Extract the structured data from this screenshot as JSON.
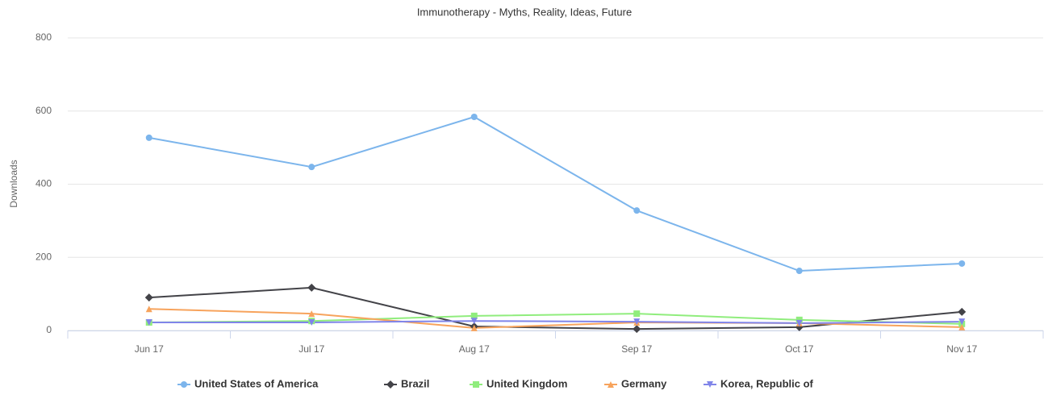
{
  "chart_data": {
    "type": "line",
    "title": "Immunotherapy - Myths, Reality, Ideas, Future",
    "y_label": "Downloads",
    "categories": [
      "Jun 17",
      "Jul 17",
      "Aug 17",
      "Sep 17",
      "Oct 17",
      "Nov 17"
    ],
    "series": [
      {
        "name": "United States of America",
        "color": "#7cb5ec",
        "marker": "circle",
        "values": [
          527,
          447,
          584,
          328,
          163,
          183
        ]
      },
      {
        "name": "Brazil",
        "color": "#434348",
        "marker": "diamond",
        "values": [
          90,
          117,
          11,
          4,
          9,
          51
        ]
      },
      {
        "name": "United Kingdom",
        "color": "#90ed7d",
        "marker": "square",
        "values": [
          22,
          26,
          40,
          46,
          29,
          18
        ]
      },
      {
        "name": "Germany",
        "color": "#f7a35c",
        "marker": "triangle",
        "values": [
          59,
          46,
          7,
          22,
          20,
          9
        ]
      },
      {
        "name": "Korea, Republic of",
        "color": "#8085e9",
        "marker": "triangle-down",
        "values": [
          22,
          22,
          26,
          24,
          20,
          24
        ]
      }
    ],
    "ylim": [
      0,
      800
    ],
    "yticks": [
      0,
      200,
      400,
      600,
      800
    ],
    "grid": true,
    "legend": "bottom"
  }
}
